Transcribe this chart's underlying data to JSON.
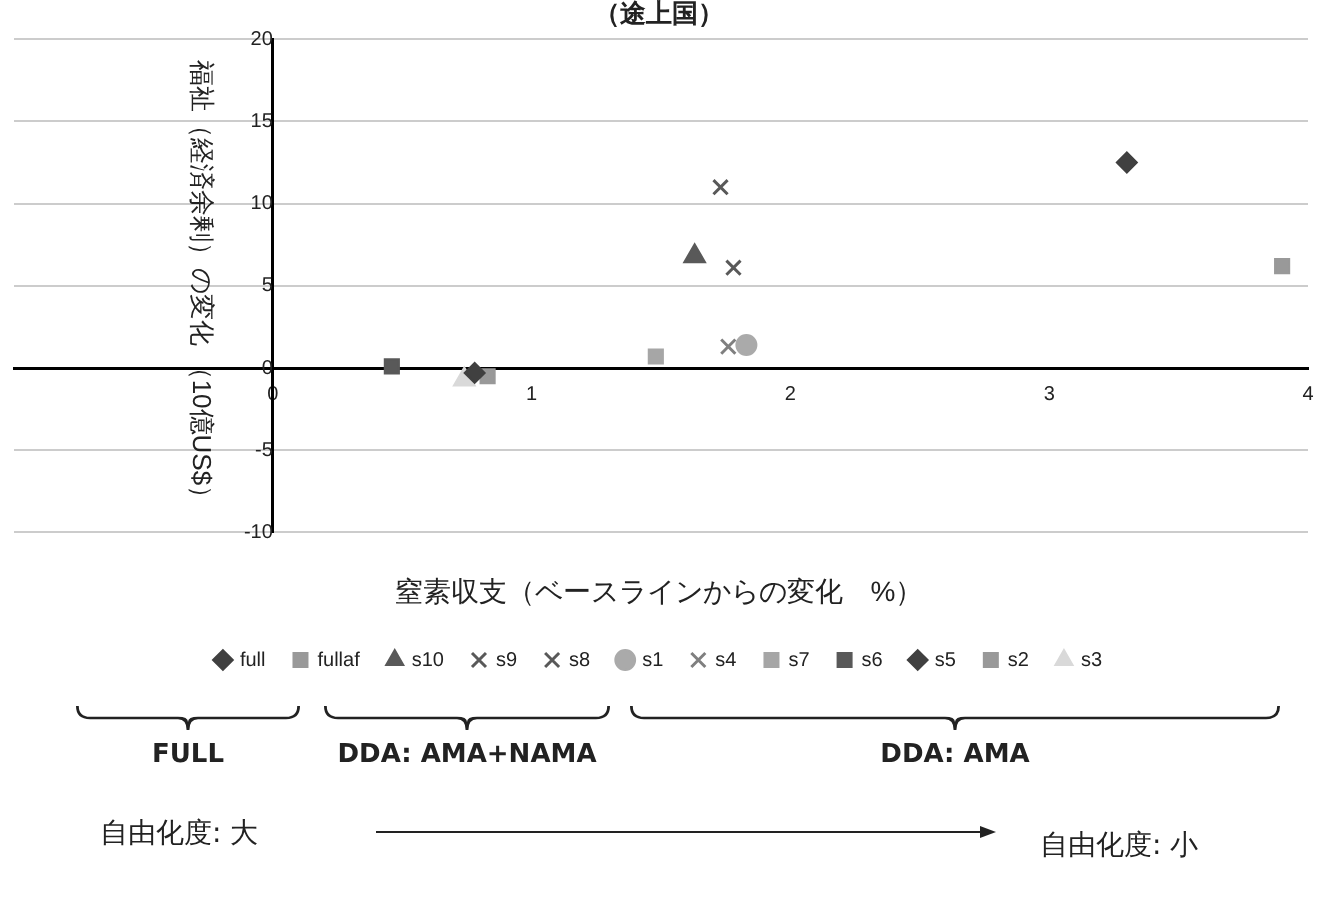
{
  "chart_data": {
    "type": "scatter",
    "title": "（途上国）",
    "xlabel": "窒素収支（ベースラインからの変化　%）",
    "ylabel": "福祉（経済余剰）の変化 （10億US$）",
    "xlim": [
      -1,
      4
    ],
    "xticks": [
      0,
      1,
      2,
      3,
      4
    ],
    "ylim": [
      -10,
      20
    ],
    "yticks": [
      -10,
      -5,
      0,
      5,
      10,
      15,
      20
    ],
    "grid": "y",
    "legend": "bottom",
    "series": [
      {
        "name": "full",
        "color": "#404040",
        "marker": "diamond",
        "x": [
          3.3
        ],
        "values": [
          12.5
        ]
      },
      {
        "name": "fullaf",
        "color": "#999999",
        "marker": "square",
        "x": [
          3.9
        ],
        "values": [
          6.2
        ]
      },
      {
        "name": "s10",
        "color": "#595959",
        "marker": "triangle",
        "x": [
          1.63
        ],
        "values": [
          6.8
        ]
      },
      {
        "name": "s9",
        "color": "#595959",
        "marker": "cross",
        "x": [
          1.73
        ],
        "values": [
          11.0
        ]
      },
      {
        "name": "s8",
        "color": "#595959",
        "marker": "cross",
        "x": [
          1.78
        ],
        "values": [
          6.1
        ]
      },
      {
        "name": "s1",
        "color": "#aaaaaa",
        "marker": "circle",
        "x": [
          1.83
        ],
        "values": [
          1.4
        ]
      },
      {
        "name": "s4",
        "color": "#7f7f7f",
        "marker": "cross",
        "x": [
          1.76
        ],
        "values": [
          1.3
        ]
      },
      {
        "name": "s7",
        "color": "#a6a6a6",
        "marker": "square",
        "x": [
          1.48
        ],
        "values": [
          0.7
        ]
      },
      {
        "name": "s6",
        "color": "#595959",
        "marker": "square",
        "x": [
          0.46
        ],
        "values": [
          0.1
        ]
      },
      {
        "name": "s5",
        "color": "#404040",
        "marker": "diamond",
        "x": [
          0.78
        ],
        "values": [
          -0.3
        ]
      },
      {
        "name": "s2",
        "color": "#999999",
        "marker": "square",
        "x": [
          0.83
        ],
        "values": [
          -0.5
        ]
      },
      {
        "name": "s3",
        "color": "#d9d9d9",
        "marker": "triangle",
        "x": [
          0.74
        ],
        "values": [
          -0.7
        ]
      }
    ],
    "annotations": [
      "FULL",
      "DDA: AMA+NAMA",
      "DDA: AMA",
      "自由化度: 大",
      "自由化度: 小"
    ]
  }
}
